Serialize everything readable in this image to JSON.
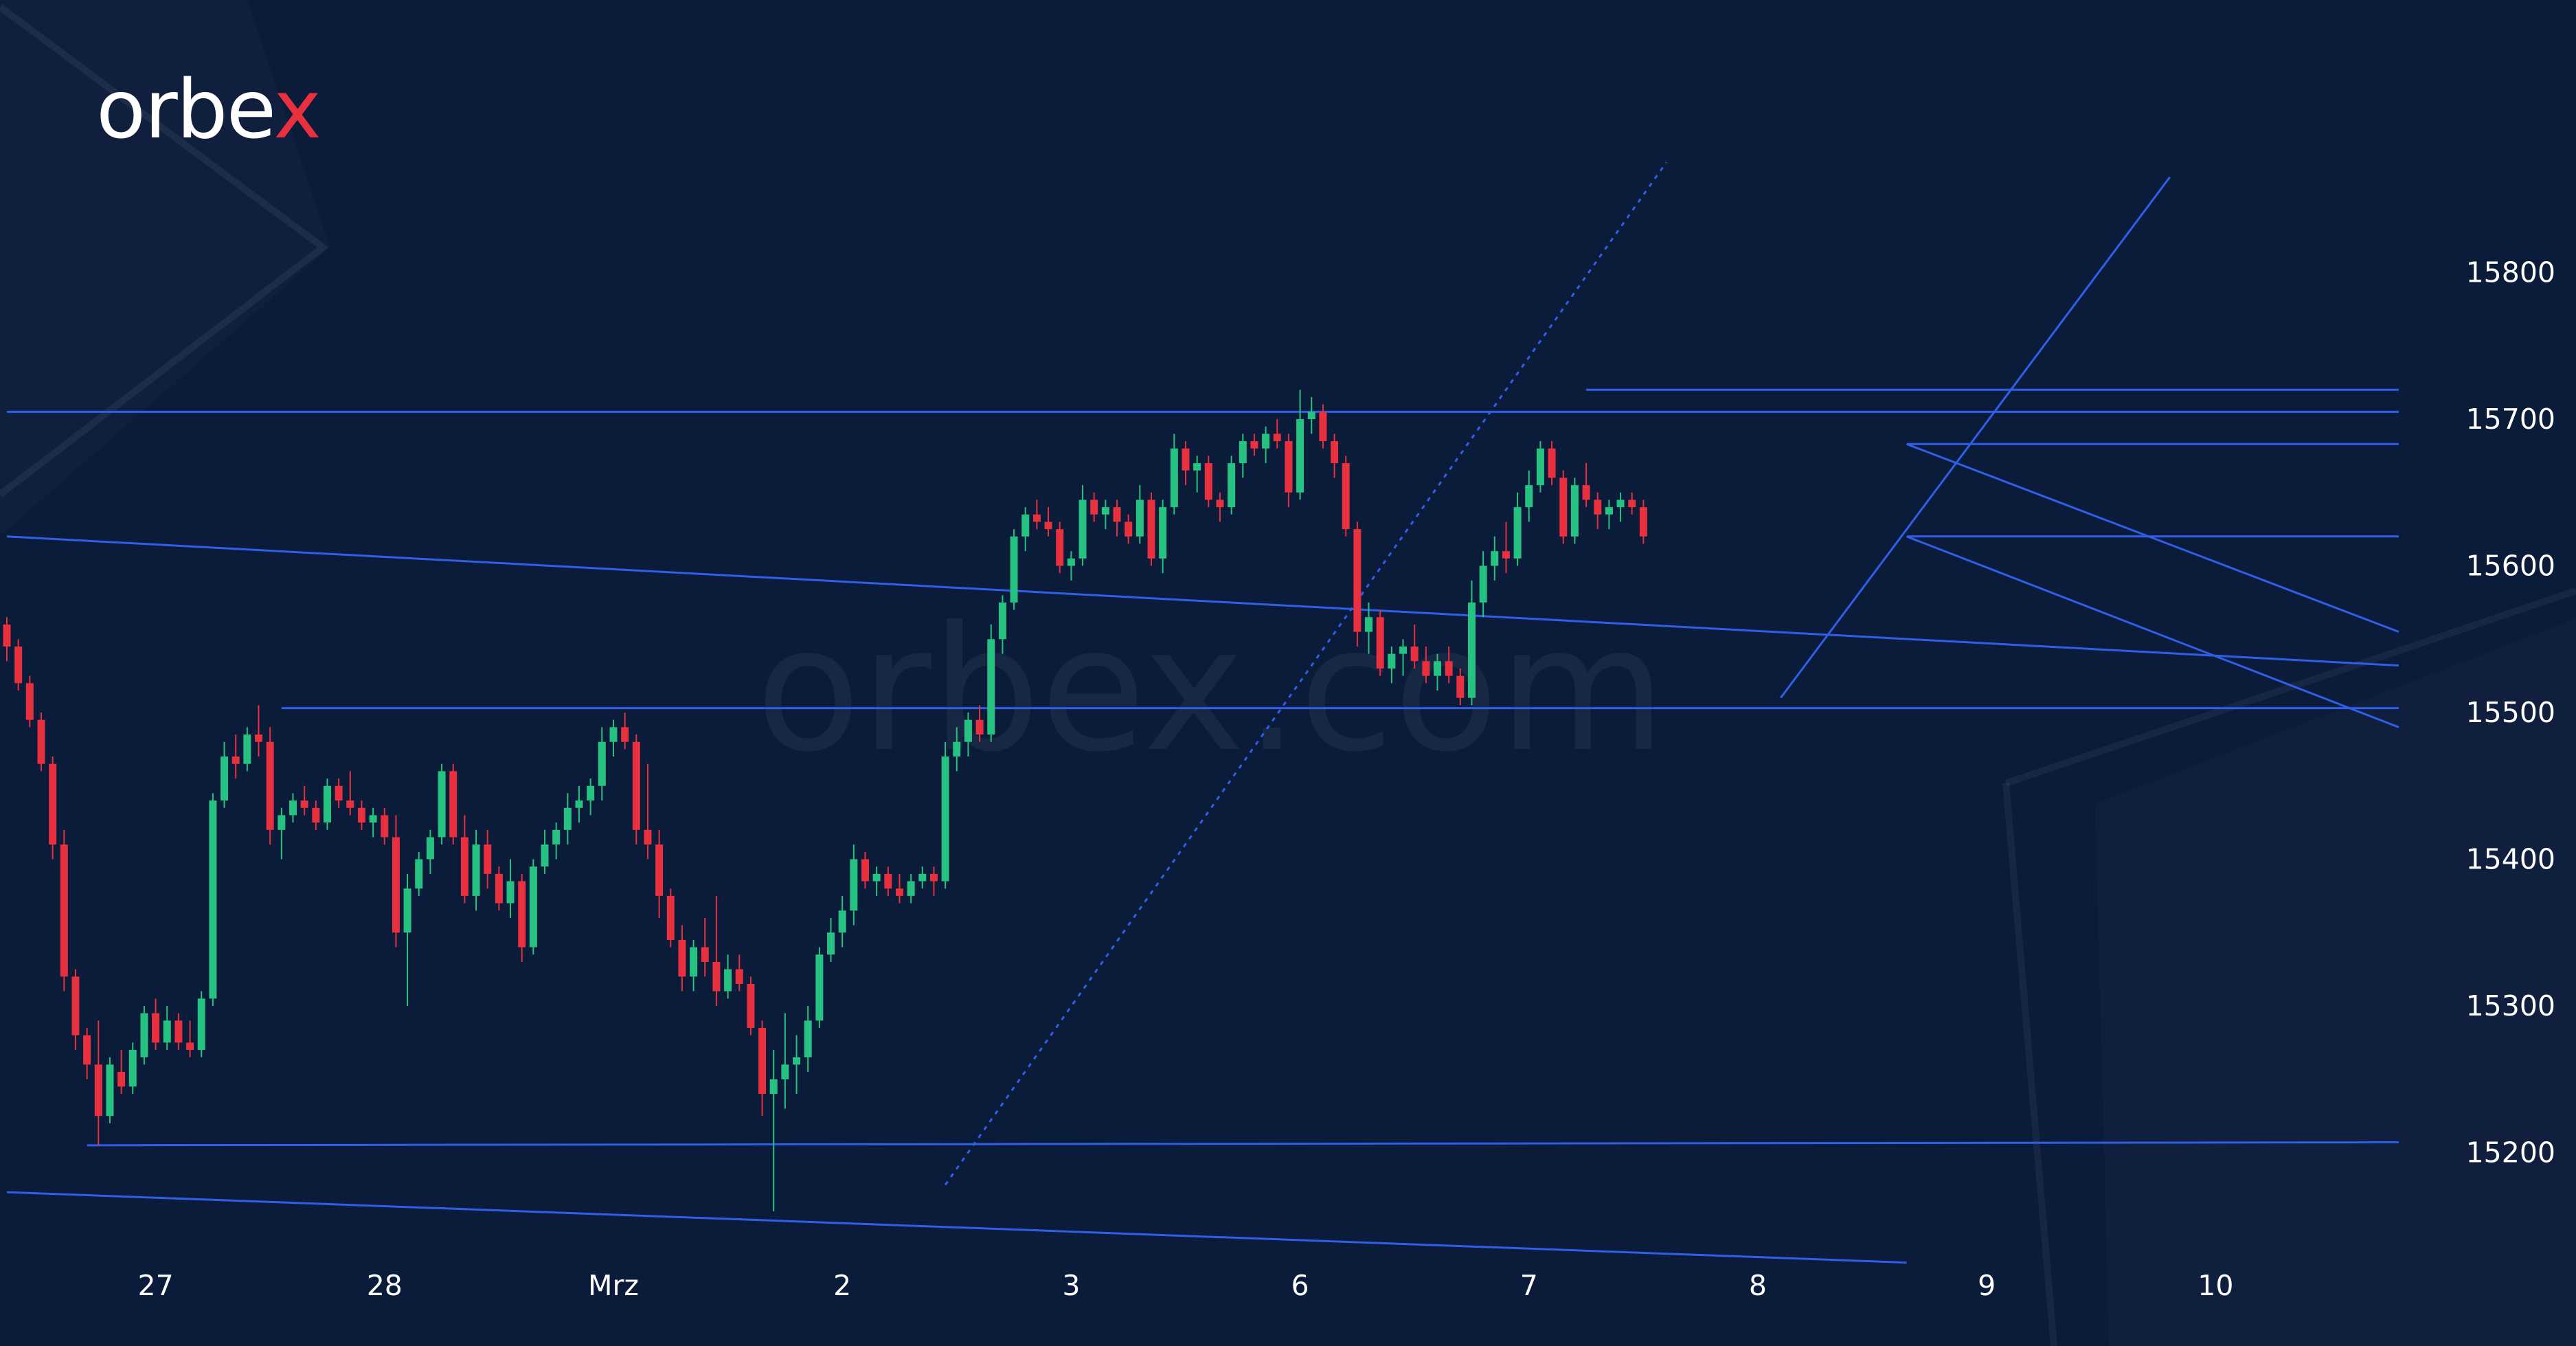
{
  "brand": {
    "logo_main": "orbe",
    "logo_x": "x",
    "watermark": "orbex.com"
  },
  "colors": {
    "background": "#0b1b3a",
    "bull": "#26c281",
    "bear": "#e8303f",
    "line": "#2f5fe8",
    "text": "#ffffff"
  },
  "chart_data": {
    "type": "candlestick",
    "title": "",
    "ylim": [
      15120,
      15900
    ],
    "yticks": [
      15200,
      15300,
      15400,
      15500,
      15600,
      15700,
      15800
    ],
    "xticks": [
      {
        "label": "27",
        "index": 13
      },
      {
        "label": "28",
        "index": 33
      },
      {
        "label": "Mrz",
        "index": 53
      },
      {
        "label": "2",
        "index": 73
      },
      {
        "label": "3",
        "index": 93
      },
      {
        "label": "6",
        "index": 113
      },
      {
        "label": "7",
        "index": 133
      },
      {
        "label": "8",
        "index": 153
      },
      {
        "label": "9",
        "index": 173
      },
      {
        "label": "10",
        "index": 193
      }
    ],
    "grid": false,
    "candles": [
      [
        15560,
        15565,
        15535,
        15545
      ],
      [
        15545,
        15550,
        15515,
        15520
      ],
      [
        15520,
        15525,
        15490,
        15495
      ],
      [
        15495,
        15500,
        15460,
        15465
      ],
      [
        15465,
        15470,
        15400,
        15410
      ],
      [
        15410,
        15420,
        15310,
        15320
      ],
      [
        15320,
        15325,
        15270,
        15280
      ],
      [
        15280,
        15285,
        15250,
        15260
      ],
      [
        15260,
        15290,
        15205,
        15225
      ],
      [
        15225,
        15265,
        15220,
        15260
      ],
      [
        15255,
        15270,
        15240,
        15245
      ],
      [
        15245,
        15275,
        15240,
        15270
      ],
      [
        15265,
        15300,
        15260,
        15295
      ],
      [
        15295,
        15305,
        15270,
        15275
      ],
      [
        15275,
        15300,
        15270,
        15290
      ],
      [
        15290,
        15295,
        15270,
        15275
      ],
      [
        15275,
        15290,
        15265,
        15270
      ],
      [
        15270,
        15310,
        15265,
        15305
      ],
      [
        15305,
        15445,
        15300,
        15440
      ],
      [
        15440,
        15480,
        15435,
        15470
      ],
      [
        15470,
        15485,
        15455,
        15465
      ],
      [
        15465,
        15490,
        15460,
        15485
      ],
      [
        15485,
        15505,
        15470,
        15480
      ],
      [
        15480,
        15490,
        15410,
        15420
      ],
      [
        15420,
        15435,
        15400,
        15430
      ],
      [
        15430,
        15445,
        15425,
        15440
      ],
      [
        15440,
        15450,
        15430,
        15435
      ],
      [
        15435,
        15440,
        15420,
        15425
      ],
      [
        15425,
        15455,
        15420,
        15450
      ],
      [
        15450,
        15455,
        15435,
        15440
      ],
      [
        15440,
        15460,
        15430,
        15435
      ],
      [
        15435,
        15440,
        15420,
        15425
      ],
      [
        15425,
        15435,
        15415,
        15430
      ],
      [
        15430,
        15435,
        15410,
        15415
      ],
      [
        15415,
        15430,
        15340,
        15350
      ],
      [
        15350,
        15390,
        15300,
        15380
      ],
      [
        15380,
        15405,
        15375,
        15400
      ],
      [
        15400,
        15420,
        15390,
        15415
      ],
      [
        15415,
        15465,
        15410,
        15460
      ],
      [
        15460,
        15465,
        15410,
        15415
      ],
      [
        15415,
        15430,
        15370,
        15375
      ],
      [
        15375,
        15420,
        15365,
        15410
      ],
      [
        15410,
        15420,
        15380,
        15390
      ],
      [
        15390,
        15395,
        15365,
        15370
      ],
      [
        15370,
        15400,
        15360,
        15385
      ],
      [
        15385,
        15390,
        15330,
        15340
      ],
      [
        15340,
        15400,
        15335,
        15395
      ],
      [
        15395,
        15420,
        15390,
        15410
      ],
      [
        15410,
        15425,
        15400,
        15420
      ],
      [
        15420,
        15445,
        15410,
        15435
      ],
      [
        15435,
        15450,
        15425,
        15440
      ],
      [
        15440,
        15455,
        15430,
        15450
      ],
      [
        15450,
        15490,
        15440,
        15480
      ],
      [
        15480,
        15495,
        15470,
        15490
      ],
      [
        15490,
        15500,
        15475,
        15480
      ],
      [
        15480,
        15485,
        15410,
        15420
      ],
      [
        15420,
        15465,
        15400,
        15410
      ],
      [
        15410,
        15420,
        15360,
        15375
      ],
      [
        15375,
        15380,
        15340,
        15345
      ],
      [
        15345,
        15355,
        15310,
        15320
      ],
      [
        15320,
        15345,
        15310,
        15340
      ],
      [
        15340,
        15360,
        15320,
        15330
      ],
      [
        15330,
        15375,
        15300,
        15310
      ],
      [
        15310,
        15335,
        15305,
        15325
      ],
      [
        15325,
        15335,
        15310,
        15315
      ],
      [
        15315,
        15320,
        15280,
        15285
      ],
      [
        15285,
        15290,
        15225,
        15240
      ],
      [
        15240,
        15270,
        15160,
        15250
      ],
      [
        15250,
        15295,
        15230,
        15260
      ],
      [
        15260,
        15280,
        15240,
        15265
      ],
      [
        15265,
        15300,
        15255,
        15290
      ],
      [
        15290,
        15340,
        15285,
        15335
      ],
      [
        15335,
        15360,
        15330,
        15350
      ],
      [
        15350,
        15375,
        15340,
        15365
      ],
      [
        15365,
        15410,
        15355,
        15400
      ],
      [
        15400,
        15405,
        15380,
        15385
      ],
      [
        15385,
        15395,
        15375,
        15390
      ],
      [
        15390,
        15395,
        15375,
        15380
      ],
      [
        15380,
        15390,
        15370,
        15375
      ],
      [
        15375,
        15390,
        15370,
        15385
      ],
      [
        15385,
        15395,
        15380,
        15390
      ],
      [
        15390,
        15395,
        15375,
        15385
      ],
      [
        15385,
        15480,
        15380,
        15470
      ],
      [
        15470,
        15490,
        15460,
        15480
      ],
      [
        15480,
        15500,
        15470,
        15495
      ],
      [
        15495,
        15505,
        15480,
        15485
      ],
      [
        15485,
        15560,
        15480,
        15550
      ],
      [
        15550,
        15580,
        15540,
        15575
      ],
      [
        15575,
        15625,
        15570,
        15620
      ],
      [
        15620,
        15640,
        15610,
        15635
      ],
      [
        15635,
        15645,
        15625,
        15630
      ],
      [
        15630,
        15640,
        15620,
        15625
      ],
      [
        15625,
        15630,
        15595,
        15600
      ],
      [
        15600,
        15610,
        15590,
        15605
      ],
      [
        15605,
        15655,
        15600,
        15645
      ],
      [
        15645,
        15650,
        15630,
        15635
      ],
      [
        15635,
        15645,
        15625,
        15640
      ],
      [
        15640,
        15645,
        15620,
        15630
      ],
      [
        15630,
        15635,
        15615,
        15620
      ],
      [
        15620,
        15655,
        15615,
        15645
      ],
      [
        15645,
        15650,
        15600,
        15605
      ],
      [
        15605,
        15645,
        15595,
        15640
      ],
      [
        15640,
        15690,
        15635,
        15680
      ],
      [
        15680,
        15685,
        15655,
        15665
      ],
      [
        15665,
        15675,
        15650,
        15670
      ],
      [
        15670,
        15675,
        15640,
        15645
      ],
      [
        15645,
        15650,
        15630,
        15640
      ],
      [
        15640,
        15675,
        15635,
        15670
      ],
      [
        15670,
        15690,
        15660,
        15685
      ],
      [
        15685,
        15690,
        15675,
        15680
      ],
      [
        15680,
        15695,
        15670,
        15690
      ],
      [
        15690,
        15700,
        15680,
        15685
      ],
      [
        15685,
        15690,
        15640,
        15650
      ],
      [
        15650,
        15720,
        15645,
        15700
      ],
      [
        15700,
        15715,
        15690,
        15705
      ],
      [
        15705,
        15710,
        15680,
        15685
      ],
      [
        15685,
        15690,
        15660,
        15670
      ],
      [
        15670,
        15675,
        15620,
        15625
      ],
      [
        15625,
        15630,
        15545,
        15555
      ],
      [
        15555,
        15575,
        15540,
        15565
      ],
      [
        15565,
        15570,
        15525,
        15530
      ],
      [
        15530,
        15545,
        15520,
        15540
      ],
      [
        15540,
        15550,
        15525,
        15545
      ],
      [
        15545,
        15560,
        15530,
        15535
      ],
      [
        15535,
        15545,
        15520,
        15525
      ],
      [
        15525,
        15540,
        15515,
        15535
      ],
      [
        15535,
        15545,
        15520,
        15525
      ],
      [
        15525,
        15530,
        15505,
        15510
      ],
      [
        15510,
        15590,
        15505,
        15575
      ],
      [
        15575,
        15610,
        15565,
        15600
      ],
      [
        15600,
        15620,
        15590,
        15610
      ],
      [
        15610,
        15630,
        15595,
        15605
      ],
      [
        15605,
        15650,
        15600,
        15640
      ],
      [
        15640,
        15665,
        15630,
        15655
      ],
      [
        15655,
        15685,
        15650,
        15680
      ],
      [
        15680,
        15685,
        15655,
        15660
      ],
      [
        15660,
        15665,
        15615,
        15620
      ],
      [
        15620,
        15660,
        15615,
        15655
      ],
      [
        15655,
        15670,
        15640,
        15645
      ],
      [
        15645,
        15650,
        15625,
        15635
      ],
      [
        15635,
        15645,
        15625,
        15640
      ],
      [
        15640,
        15650,
        15630,
        15645
      ],
      [
        15645,
        15650,
        15635,
        15640
      ],
      [
        15640,
        15645,
        15615,
        15620
      ]
    ],
    "lines": [
      {
        "name": "upper-channel-line",
        "style": "solid",
        "from": [
          0,
          15620
        ],
        "to": [
          209,
          15532
        ]
      },
      {
        "name": "lower-channel-line",
        "style": "solid",
        "from": [
          0,
          15173
        ],
        "to": [
          166,
          15125
        ]
      },
      {
        "name": "resistance-15705",
        "style": "solid",
        "from": [
          0,
          15705
        ],
        "to": [
          209,
          15705
        ]
      },
      {
        "name": "resistance-15720",
        "style": "solid",
        "from": [
          138,
          15720
        ],
        "to": [
          209,
          15720
        ]
      },
      {
        "name": "resistance-15683",
        "style": "solid",
        "from": [
          166,
          15683
        ],
        "to": [
          209,
          15683
        ]
      },
      {
        "name": "support-15620",
        "style": "solid",
        "from": [
          166,
          15620
        ],
        "to": [
          209,
          15620
        ]
      },
      {
        "name": "support-15503",
        "style": "solid",
        "from": [
          24,
          15503
        ],
        "to": [
          209,
          15503
        ]
      },
      {
        "name": "support-15205",
        "style": "solid",
        "from": [
          7,
          15205
        ],
        "to": [
          209,
          15207
        ]
      },
      {
        "name": "flag-upper-line",
        "style": "solid",
        "from": [
          166,
          15683
        ],
        "to": [
          209,
          15555
        ]
      },
      {
        "name": "flag-lower-line",
        "style": "solid",
        "from": [
          166,
          15620
        ],
        "to": [
          209,
          15490
        ]
      },
      {
        "name": "uptrend-line",
        "style": "solid",
        "from": [
          155,
          15510
        ],
        "to": [
          189,
          15865
        ]
      },
      {
        "name": "dotted-trend-line",
        "style": "dotted",
        "from": [
          82,
          15178
        ],
        "to": [
          145,
          15875
        ]
      }
    ]
  }
}
